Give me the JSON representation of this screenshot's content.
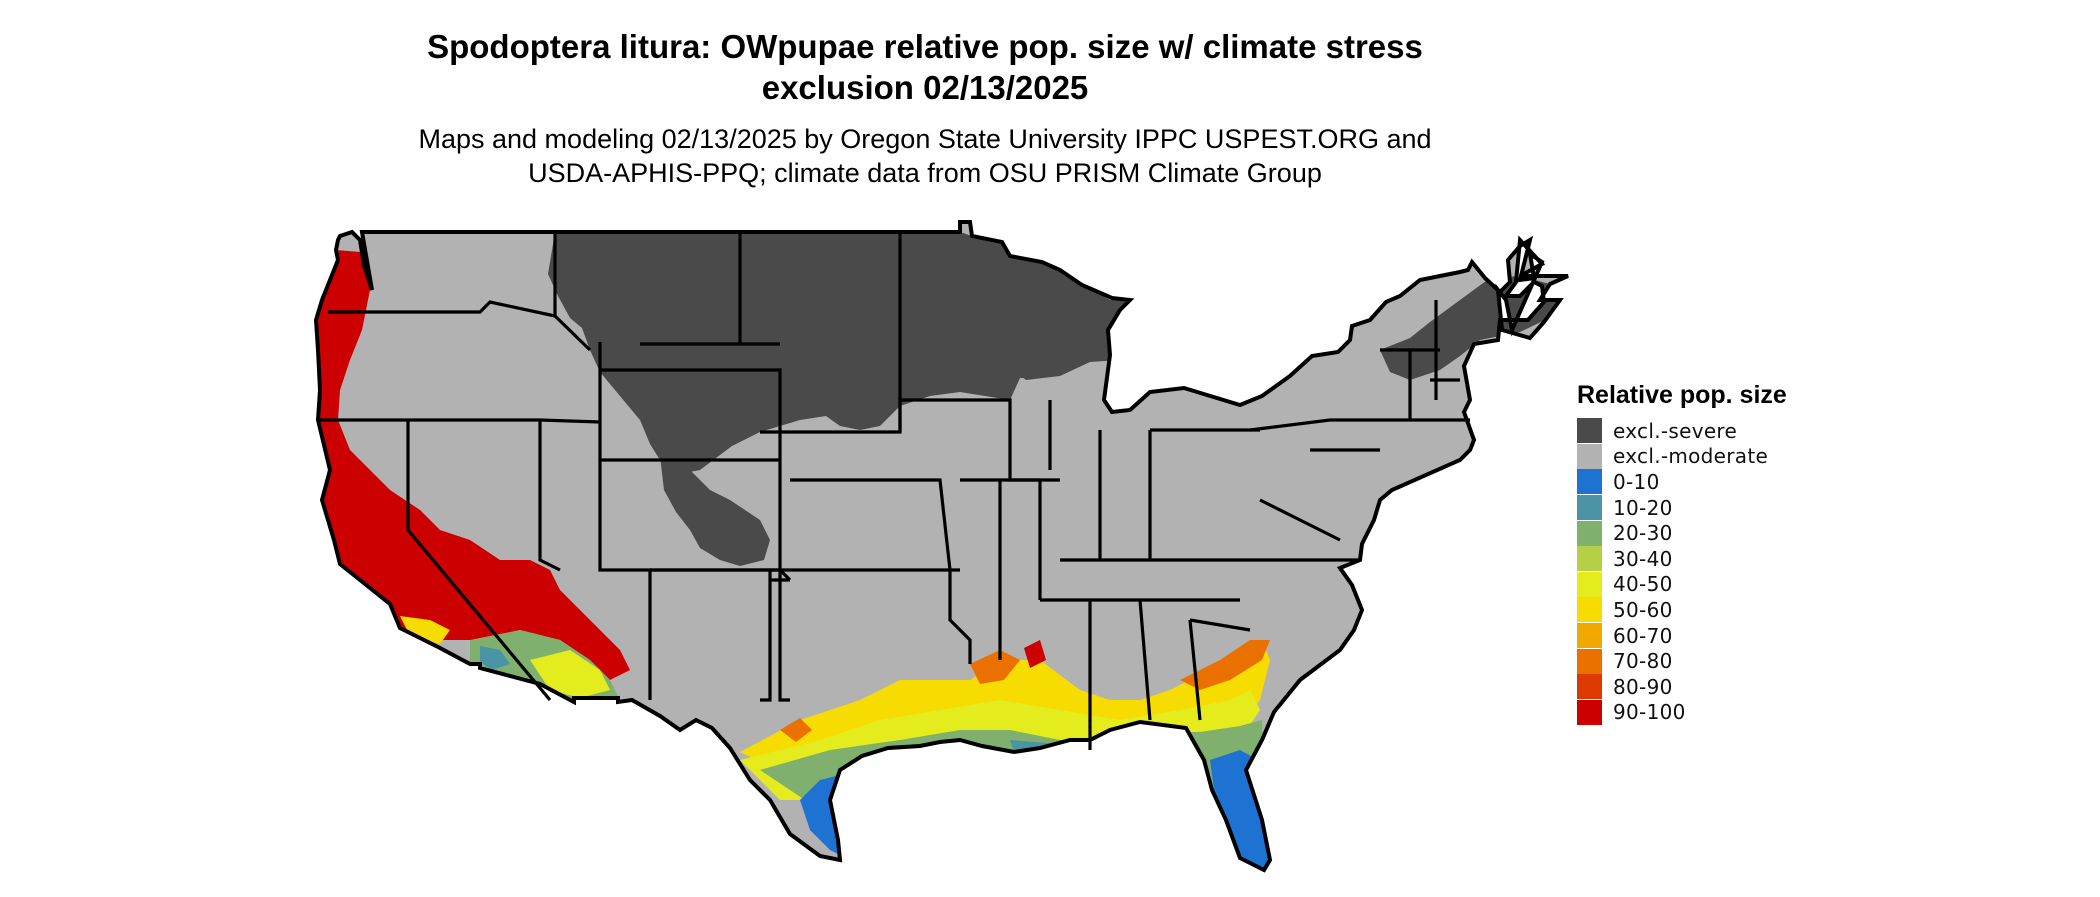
{
  "title_line1": "Spodoptera litura: OWpupae relative pop. size w/ climate stress",
  "title_line2": "exclusion 02/13/2025",
  "subtitle_line1": "Maps and modeling 02/13/2025 by Oregon State University IPPC USPEST.ORG and",
  "subtitle_line2": "USDA-APHIS-PPQ; climate data from OSU PRISM Climate Group",
  "legend": {
    "title": "Relative pop. size",
    "items": [
      {
        "label": "excl.-severe",
        "color": "#4a4a4a"
      },
      {
        "label": "excl.-moderate",
        "color": "#b2b2b2"
      },
      {
        "label": "0-10",
        "color": "#1e73d2"
      },
      {
        "label": "10-20",
        "color": "#4a94a6"
      },
      {
        "label": "20-30",
        "color": "#7fb06e"
      },
      {
        "label": "30-40",
        "color": "#b5d046"
      },
      {
        "label": "40-50",
        "color": "#e4ec1e"
      },
      {
        "label": "50-60",
        "color": "#f6dc00"
      },
      {
        "label": "60-70",
        "color": "#f1a800"
      },
      {
        "label": "70-80",
        "color": "#ea7100"
      },
      {
        "label": "80-90",
        "color": "#dc3a00"
      },
      {
        "label": "90-100",
        "color": "#cc0000"
      }
    ]
  },
  "colors": {
    "severe": "#4a4a4a",
    "moderate": "#b2b2b2",
    "c0_10": "#1e73d2",
    "c10_20": "#4a94a6",
    "c20_30": "#7fb06e",
    "c30_40": "#b5d046",
    "c40_50": "#e4ec1e",
    "c50_60": "#f6dc00",
    "c60_70": "#f1a800",
    "c70_80": "#ea7100",
    "c80_90": "#dc3a00",
    "c90_100": "#cc0000",
    "border": "#000000"
  }
}
